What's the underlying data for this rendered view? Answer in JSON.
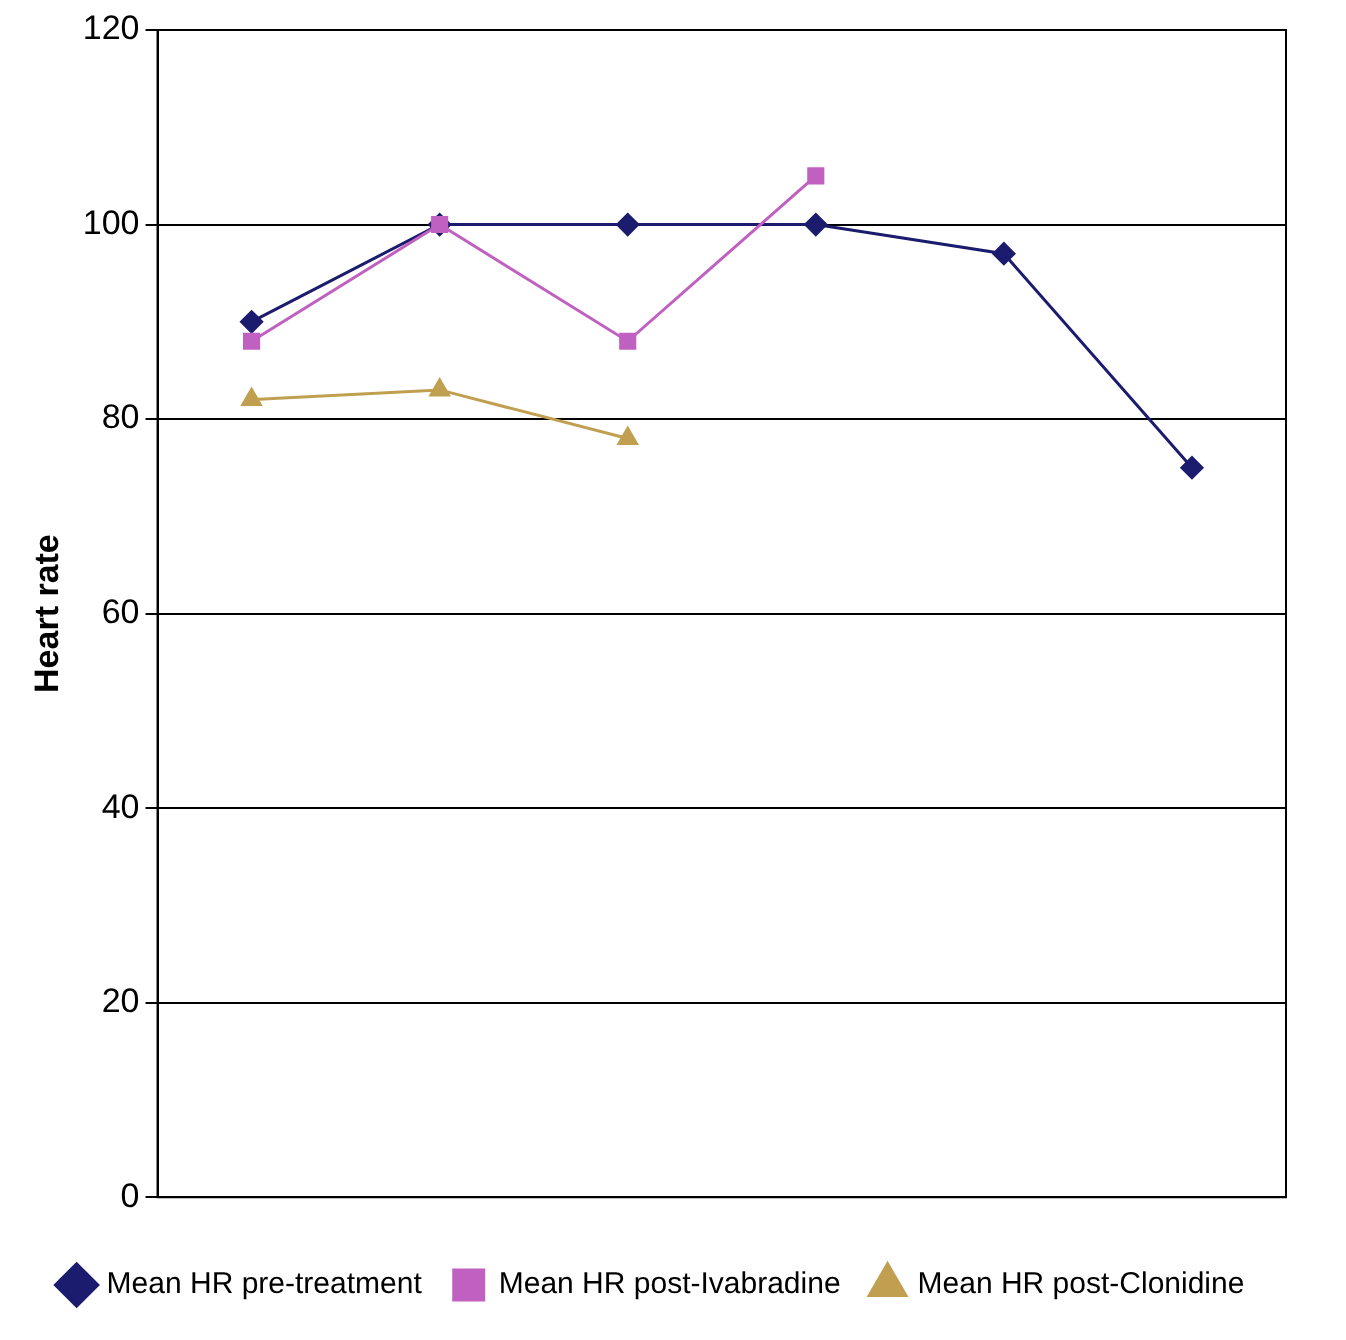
{
  "chart_data": {
    "type": "line",
    "ylabel": "Heart rate",
    "categories": [
      null,
      null,
      null,
      null,
      null,
      null
    ],
    "series": [
      {
        "name": "Mean HR pre-treatment",
        "color": "#1c1c6e",
        "marker": "diamond",
        "values": [
          90,
          100,
          100,
          100,
          97,
          75
        ]
      },
      {
        "name": "Mean HR post-Ivabradine",
        "color": "#c060c0",
        "marker": "square",
        "values": [
          88,
          100,
          88,
          105,
          null,
          null
        ]
      },
      {
        "name": "Mean HR post-Clonidine",
        "color": "#c0a050",
        "marker": "triangle",
        "values": [
          82,
          83,
          78,
          null,
          null,
          null
        ]
      }
    ],
    "ylim": [
      0,
      120
    ],
    "yticks": [
      0,
      20,
      40,
      60,
      80,
      100,
      120
    ],
    "grid": "y",
    "legend": "bottom",
    "line_style": "solid"
  }
}
